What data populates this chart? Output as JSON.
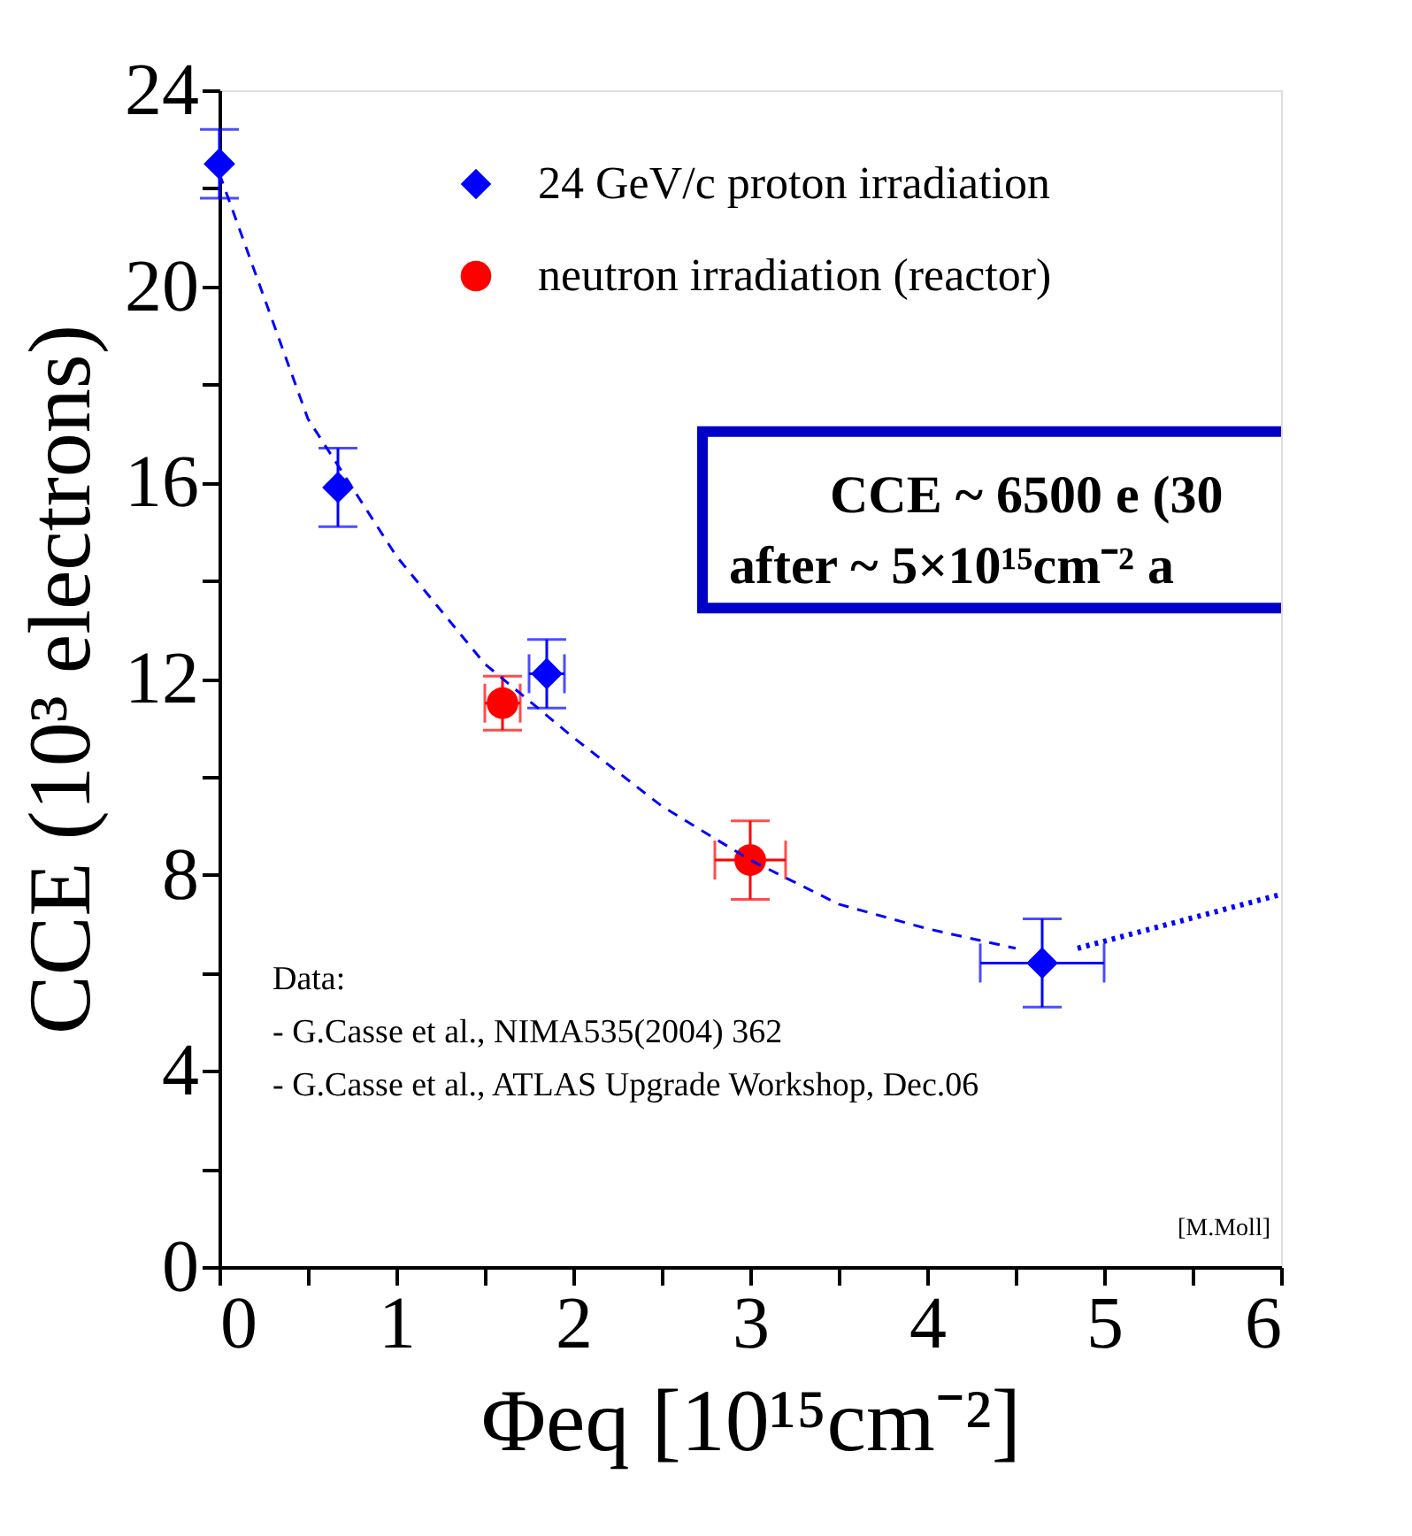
{
  "chart_data": {
    "type": "scatter",
    "xlabel": "Φeq [10¹⁵cm⁻²]",
    "ylabel": "CCE (10³ electrons)",
    "xlim": [
      0,
      6
    ],
    "xticks": [
      0,
      {
        "value": 0.5,
        "label": null
      },
      1,
      {
        "value": 1.5,
        "label": null
      },
      2,
      {
        "value": 2.5,
        "label": null
      },
      3,
      {
        "value": 3.5,
        "label": null
      },
      4,
      {
        "value": 4.5,
        "label": null
      },
      5,
      {
        "value": 5.5,
        "label": null
      },
      6
    ],
    "ylim": [
      0,
      24
    ],
    "yticks": [
      0,
      {
        "value": 2,
        "label": null
      },
      4,
      {
        "value": 6,
        "label": null
      },
      8,
      {
        "value": 10,
        "label": null
      },
      12,
      {
        "value": 14,
        "label": null
      },
      16,
      {
        "value": 18,
        "label": null
      },
      20,
      {
        "value": 22,
        "label": null
      },
      24
    ],
    "grid": false,
    "legend": "top",
    "series": [
      {
        "name": "24 GeV/c proton irradiation",
        "type": "scatter",
        "marker": "diamond",
        "color": "#0000ff",
        "x": [
          0.0,
          0.67,
          1.85,
          4.65
        ],
        "values": [
          22.5,
          15.9,
          12.1,
          6.2
        ],
        "errors": [
          0.7,
          0.8,
          0.7,
          0.9
        ],
        "xerrors": [
          null,
          null,
          0.1,
          0.35
        ]
      },
      {
        "name": "neutron irradiation (reactor)",
        "type": "scatter",
        "marker": "circle",
        "color": "#ff0000",
        "x": [
          1.6,
          3.0
        ],
        "values": [
          11.5,
          8.3
        ],
        "errors": [
          0.55,
          0.8
        ],
        "xerrors": [
          0.1,
          0.2
        ]
      },
      {
        "type": "line",
        "line_style": "dashed",
        "marker": "none",
        "color": "#0000ff",
        "x": [
          0.0,
          0.5,
          1.0,
          1.5,
          2.0,
          2.5,
          3.0,
          3.5,
          4.0,
          4.5
        ],
        "values": [
          22.3,
          17.3,
          14.5,
          12.3,
          10.8,
          9.4,
          8.3,
          7.4,
          6.9,
          6.5
        ]
      },
      {
        "type": "line",
        "line_style": "dotted",
        "marker": "none",
        "color": "#0000ff",
        "x": [
          4.85,
          6.0
        ],
        "values": [
          6.5,
          7.6
        ]
      }
    ],
    "annotations": [
      "CCE ~ 6500 e (30",
      "after ~ 5×10¹⁵cm⁻² a",
      "Data:",
      "- G.Casse et al., NIMA535(2004) 362",
      "- G.Casse et al., ATLAS Upgrade Workshop, Dec.06",
      "[M.Moll]"
    ]
  }
}
